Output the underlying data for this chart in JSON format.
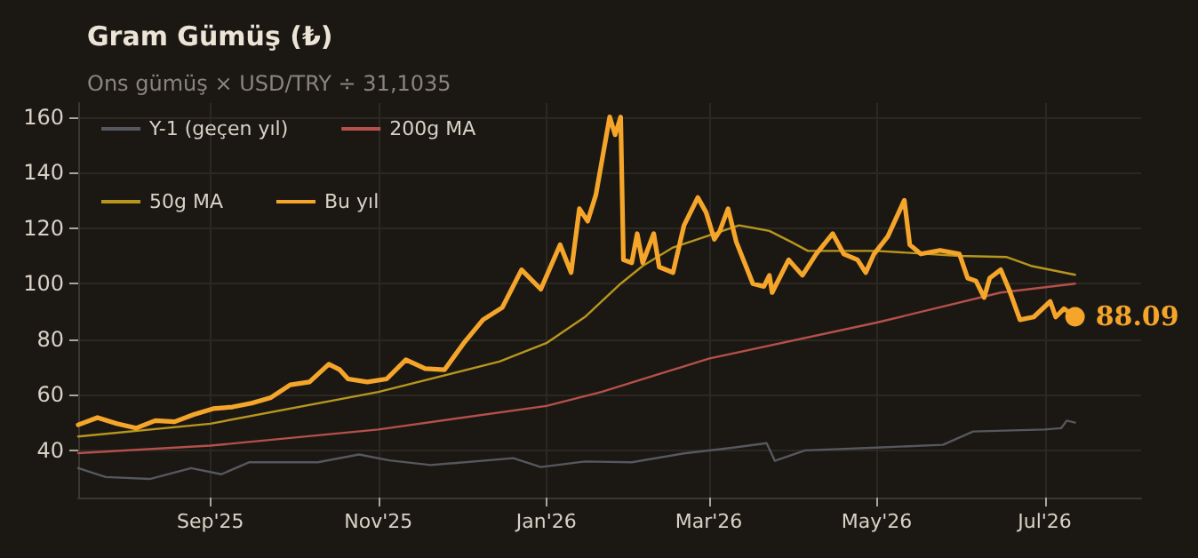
{
  "chart_data": {
    "type": "line",
    "title": "Gram Gümüş (₺)",
    "subtitle": "Ons gümüş × USD/TRY ÷ 31,1035",
    "xlim": [
      "2025-07-15",
      "2026-08-05"
    ],
    "xticks": [
      {
        "value": "2025-09-01",
        "label": "Sep'25"
      },
      {
        "value": "2025-11-01",
        "label": "Nov'25"
      },
      {
        "value": "2026-01-01",
        "label": "Jan'26"
      },
      {
        "value": "2026-03-01",
        "label": "Mar'26"
      },
      {
        "value": "2026-05-01",
        "label": "May'26"
      },
      {
        "value": "2026-07-01",
        "label": "Jul'26"
      }
    ],
    "ylim": [
      23,
      165
    ],
    "yticks": [
      40,
      60,
      80,
      100,
      120,
      140,
      160
    ],
    "grid": true,
    "legend": "top left",
    "marker": "none",
    "line_style": "solid",
    "annotations": [
      {
        "text": "88.09",
        "x": "2026-07-12",
        "y": 88.09
      }
    ],
    "series": [
      {
        "name": "Y-1 (geçen yıl)",
        "color": "#55585e",
        "x": [
          "2025-07-15",
          "2025-07-25",
          "2025-08-10",
          "2025-08-25",
          "2025-09-05",
          "2025-09-15",
          "2025-10-10",
          "2025-10-25",
          "2025-11-05",
          "2025-11-20",
          "2025-12-20",
          "2025-12-30",
          "2026-01-15",
          "2026-02-01",
          "2026-02-20",
          "2026-03-10",
          "2026-03-22",
          "2026-03-25",
          "2026-04-05",
          "2026-05-01",
          "2026-05-25",
          "2026-06-05",
          "2026-07-01",
          "2026-07-07",
          "2026-07-09",
          "2026-07-12"
        ],
        "values": [
          33.6,
          30.4,
          29.7,
          33.6,
          31.4,
          35.7,
          35.7,
          38.5,
          36.4,
          34.7,
          37.2,
          34,
          36,
          35.7,
          38.9,
          41,
          42.6,
          36.2,
          40,
          41,
          42,
          46.8,
          47.5,
          48,
          50.7,
          50
        ]
      },
      {
        "name": "200g MA",
        "color": "#b5504a",
        "x": [
          "2025-07-15",
          "2025-09-01",
          "2025-11-01",
          "2026-01-01",
          "2026-01-21",
          "2026-03-01",
          "2026-05-01",
          "2026-06-15",
          "2026-07-12"
        ],
        "values": [
          39,
          41.7,
          47.5,
          56,
          61,
          73,
          86,
          96.8,
          100
        ]
      },
      {
        "name": "50g MA",
        "color": "#b8961e",
        "x": [
          "2025-07-15",
          "2025-09-01",
          "2025-11-01",
          "2025-12-15",
          "2026-01-01",
          "2026-01-15",
          "2026-01-28",
          "2026-02-05",
          "2026-02-16",
          "2026-02-28",
          "2026-03-12",
          "2026-03-23",
          "2026-03-31",
          "2026-04-06",
          "2026-05-01",
          "2026-05-31",
          "2026-06-17",
          "2026-06-26",
          "2026-07-12"
        ],
        "values": [
          45,
          49.6,
          61,
          72,
          78.6,
          88,
          100,
          106.4,
          113,
          117,
          121,
          119,
          115,
          111.8,
          111.8,
          110,
          109.6,
          106.4,
          103.2
        ]
      },
      {
        "name": "Bu yıl",
        "color": "#f5a52a",
        "x": [
          "2025-07-15",
          "2025-07-22",
          "2025-07-29",
          "2025-08-05",
          "2025-08-12",
          "2025-08-19",
          "2025-08-26",
          "2025-09-02",
          "2025-09-09",
          "2025-09-16",
          "2025-09-23",
          "2025-09-30",
          "2025-10-07",
          "2025-10-14",
          "2025-10-18",
          "2025-10-21",
          "2025-10-28",
          "2025-11-04",
          "2025-11-11",
          "2025-11-18",
          "2025-11-25",
          "2025-12-02",
          "2025-12-09",
          "2025-12-16",
          "2025-12-23",
          "2025-12-30",
          "2026-01-06",
          "2026-01-10",
          "2026-01-13",
          "2026-01-16",
          "2026-01-19",
          "2026-01-24",
          "2026-01-26",
          "2026-01-28",
          "2026-01-29",
          "2026-02-01",
          "2026-02-03",
          "2026-02-05",
          "2026-02-09",
          "2026-02-11",
          "2026-02-16",
          "2026-02-20",
          "2026-02-25",
          "2026-02-28",
          "2026-03-03",
          "2026-03-05",
          "2026-03-08",
          "2026-03-11",
          "2026-03-17",
          "2026-03-21",
          "2026-03-23",
          "2026-03-24",
          "2026-03-30",
          "2026-04-04",
          "2026-04-09",
          "2026-04-15",
          "2026-04-19",
          "2026-04-24",
          "2026-04-27",
          "2026-04-30",
          "2026-05-05",
          "2026-05-11",
          "2026-05-13",
          "2026-05-17",
          "2026-05-24",
          "2026-05-31",
          "2026-06-03",
          "2026-06-06",
          "2026-06-09",
          "2026-06-11",
          "2026-06-15",
          "2026-06-18",
          "2026-06-22",
          "2026-06-27",
          "2026-07-03",
          "2026-07-05",
          "2026-07-08",
          "2026-07-12"
        ],
        "values": [
          49.2,
          51.8,
          49.6,
          48,
          50.7,
          50.3,
          52.9,
          55,
          55.6,
          57,
          59,
          63.6,
          64.6,
          71,
          69,
          65.7,
          64.6,
          65.7,
          72.6,
          69.4,
          69,
          78.6,
          87,
          91.4,
          105,
          98,
          114,
          104,
          127,
          122.5,
          132,
          160,
          153.6,
          160,
          108.6,
          107.5,
          118,
          107.5,
          118,
          106,
          104,
          121,
          131,
          125.7,
          116,
          119,
          127,
          115,
          100,
          99,
          103,
          96.8,
          108.6,
          103,
          110.7,
          118,
          110.7,
          108.6,
          104,
          110.7,
          117,
          130,
          114,
          110.7,
          112,
          110.7,
          102,
          101,
          95,
          102,
          105,
          98,
          87,
          88,
          93.6,
          88,
          91,
          88.09
        ]
      }
    ]
  }
}
